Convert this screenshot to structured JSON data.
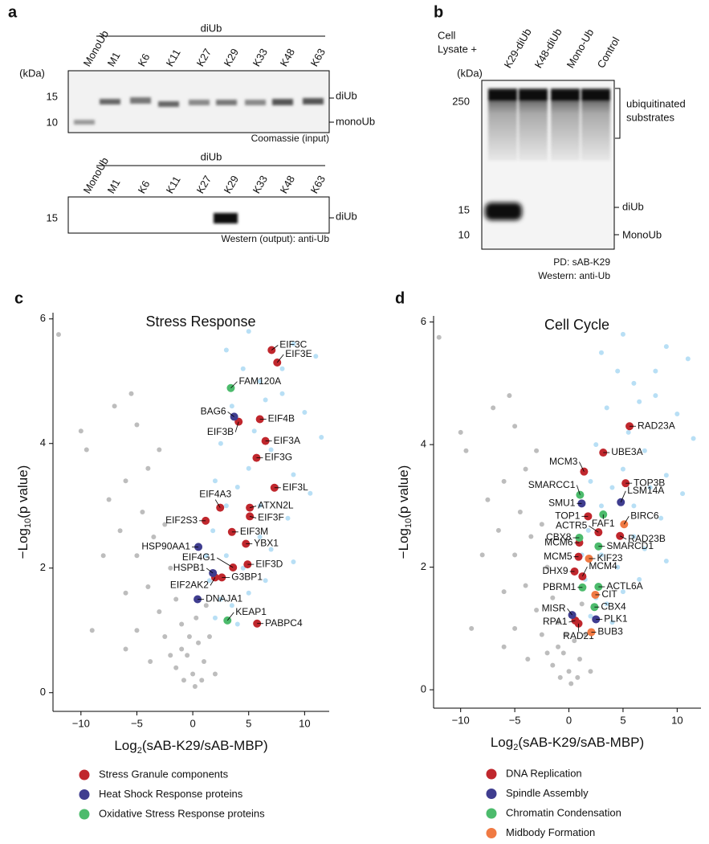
{
  "panel_a": {
    "label": "a",
    "group": "diUb",
    "lanes": [
      "MonoUb",
      "M1",
      "K6",
      "K11",
      "K27",
      "K29",
      "K33",
      "K48",
      "K63"
    ],
    "unit": "(kDa)",
    "markers": [
      "15",
      "10"
    ],
    "bands": [
      "diUb",
      "monoUb"
    ],
    "caption": "Coomassie (input)",
    "blot2": {
      "group": "diUb",
      "lanes": [
        "MonoUb",
        "M1",
        "K6",
        "K11",
        "K27",
        "K29",
        "K33",
        "K48",
        "K63"
      ],
      "markers": [
        "15"
      ],
      "bands": [
        "diUb"
      ],
      "caption": "Western (output): anti-Ub"
    }
  },
  "panel_b": {
    "label": "b",
    "treatment": [
      "Cell",
      "Lysate +"
    ],
    "lanes": [
      "K29-diUb",
      "K48-diUb",
      "Mono-Ub",
      "Control"
    ],
    "unit": "(kDa)",
    "markers": [
      "250",
      "15",
      "10"
    ],
    "bracket": [
      "ubiquitinated",
      "substrates"
    ],
    "bands": [
      "diUb",
      "MonoUb"
    ],
    "captions": [
      "PD: sAB-K29",
      "Western: anti-Ub"
    ]
  },
  "chart_data": [
    {
      "type": "scatter",
      "panel": "c",
      "title": "Stress Response",
      "x_label": [
        "Log",
        "2",
        "(sAB-K29/sAB-MBP)"
      ],
      "y_label": [
        "−Log",
        "10",
        "(p value)"
      ],
      "xlim": [
        -12.5,
        12.2
      ],
      "ylim": [
        -0.3,
        6.1
      ],
      "xticks": [
        {
          "value": -10,
          "label": "−10"
        },
        {
          "value": -5,
          "label": "−5"
        },
        0,
        5,
        10
      ],
      "yticks": [
        0,
        2,
        4,
        6
      ],
      "series": [
        {
          "color": "#bdbdbd",
          "x": [
            -12,
            -9.5,
            -10,
            -7,
            -5.5,
            -5,
            -6,
            -7.5,
            -4,
            -3,
            -6.5,
            -4.5,
            -8,
            -5,
            -3.5,
            -2.5,
            -6,
            -4,
            -2,
            -3,
            -1.5,
            -9,
            -5,
            -2.5,
            -1,
            -0.5,
            0,
            0.5,
            -1.5,
            1,
            0.3,
            -0.8,
            0.2,
            -0.3,
            2,
            -2,
            0.8,
            -1,
            1.2,
            -6,
            -3.8,
            1.5
          ],
          "y": [
            5.75,
            3.9,
            4.2,
            4.6,
            4.8,
            4.3,
            3.4,
            3.1,
            3.6,
            3.9,
            2.6,
            2.9,
            2.2,
            2.2,
            2.5,
            2.7,
            1.6,
            1.7,
            2,
            1.3,
            1.5,
            1,
            1,
            0.9,
            1.1,
            0.6,
            0.3,
            0.8,
            0.4,
            0.5,
            1.2,
            0.2,
            0.1,
            0.9,
            0.3,
            0.6,
            0.2,
            0.7,
            1.4,
            0.7,
            0.5,
            0.9
          ]
        },
        {
          "color": "#b8dff5",
          "x": [
            3,
            5,
            9,
            11,
            6,
            4.5,
            8,
            10,
            3.5,
            6.5,
            2.5,
            5,
            7,
            9,
            11.5,
            4,
            6,
            8.5,
            10.5,
            2,
            3,
            1.8,
            4.5,
            7,
            9,
            1.5,
            2.5,
            3.5,
            5,
            6.5,
            2,
            4,
            3,
            7.5,
            5.5,
            8,
            1.2,
            6
          ],
          "y": [
            5.5,
            5.8,
            5.6,
            5.4,
            5,
            5.2,
            4.8,
            4.5,
            4.6,
            4.7,
            4,
            3.6,
            3.9,
            3.5,
            4.1,
            3.3,
            3,
            2.8,
            3.2,
            3.4,
            2.2,
            2.6,
            2,
            2.3,
            2.1,
            1.8,
            1.5,
            1.4,
            1.6,
            1.8,
            1.2,
            1.1,
            3,
            3.3,
            4.2,
            5.2,
            2.2,
            2.5
          ]
        },
        {
          "name": "Stress Granule components",
          "color": "#c0272d",
          "labels": [
            "EIF3C",
            "EIF3E",
            "EIF3B",
            "EIF4B",
            "EIF3A",
            "EIF3G",
            "EIF3L",
            "EIF4A3",
            "ATXN2L",
            "EIF3F",
            "EIF2S3",
            "EIF3M",
            "YBX1",
            "EIF4G1",
            "EIF3D",
            "G3BP1",
            "EIF2AK2",
            "PABPC4"
          ],
          "x": [
            7.05,
            7.55,
            4.1,
            6,
            6.5,
            5.7,
            7.3,
            2.45,
            5.1,
            5.1,
            1.15,
            3.5,
            4.75,
            3.6,
            4.9,
            2.6,
            2,
            5.75
          ],
          "y": [
            5.5,
            5.3,
            4.35,
            4.39,
            4.04,
            3.77,
            3.29,
            2.97,
            2.97,
            2.83,
            2.76,
            2.58,
            2.39,
            2.01,
            2.06,
            1.85,
            1.85,
            1.11
          ]
        },
        {
          "name": "Heat Shock Response proteins",
          "color": "#3f3d8f",
          "labels": [
            "BAG6",
            "HSP90AA1",
            "HSPB1",
            "DNAJA1"
          ],
          "x": [
            3.7,
            0.5,
            1.8,
            0.43
          ],
          "y": [
            4.43,
            2.34,
            1.92,
            1.5
          ]
        },
        {
          "name": "Oxidative Stress Response proteins",
          "color": "#4cbb6c",
          "labels": [
            "FAM120A",
            "KEAP1"
          ],
          "x": [
            3.4,
            3.1
          ],
          "y": [
            4.89,
            1.16
          ]
        }
      ]
    },
    {
      "type": "scatter",
      "panel": "d",
      "title": "Cell Cycle",
      "x_label": [
        "Log",
        "2",
        "(sAB-K29/sAB-MBP)"
      ],
      "y_label": [
        "−Log",
        "10",
        "(p value)"
      ],
      "xlim": [
        -12.5,
        12.2
      ],
      "ylim": [
        -0.3,
        6.1
      ],
      "xticks": [
        {
          "value": -10,
          "label": "−10"
        },
        {
          "value": -5,
          "label": "−5"
        },
        0,
        5,
        10
      ],
      "yticks": [
        0,
        2,
        4,
        6
      ],
      "series": [
        {
          "color": "#bdbdbd",
          "x": [
            -12,
            -9.5,
            -10,
            -7,
            -5.5,
            -5,
            -6,
            -7.5,
            -4,
            -3,
            -6.5,
            -4.5,
            -8,
            -5,
            -3.5,
            -2.5,
            -6,
            -4,
            -2,
            -3,
            -1.5,
            -9,
            -5,
            -2.5,
            -1,
            -0.5,
            0,
            0.5,
            -1.5,
            1,
            0.3,
            -0.8,
            0.2,
            -0.3,
            2,
            -2,
            0.8,
            -1,
            1.2,
            -6,
            -3.8,
            1.5
          ],
          "y": [
            5.75,
            3.9,
            4.2,
            4.6,
            4.8,
            4.3,
            3.4,
            3.1,
            3.6,
            3.9,
            2.6,
            2.9,
            2.2,
            2.2,
            2.5,
            2.7,
            1.6,
            1.7,
            2,
            1.3,
            1.5,
            1,
            1,
            0.9,
            1.1,
            0.6,
            0.3,
            0.8,
            0.4,
            0.5,
            1.2,
            0.2,
            0.1,
            0.9,
            0.3,
            0.6,
            0.2,
            0.7,
            1.4,
            0.7,
            0.5,
            0.9
          ]
        },
        {
          "color": "#b8dff5",
          "x": [
            3,
            5,
            9,
            11,
            6,
            4.5,
            8,
            10,
            3.5,
            6.5,
            2.5,
            5,
            7,
            9,
            11.5,
            4,
            6,
            8.5,
            10.5,
            2,
            3,
            1.8,
            4.5,
            7,
            9,
            1.5,
            2.5,
            3.5,
            5,
            6.5,
            2,
            4,
            3,
            7.5,
            5.5,
            8,
            1.2,
            6
          ],
          "y": [
            5.5,
            5.8,
            5.6,
            5.4,
            5,
            5.2,
            4.8,
            4.5,
            4.6,
            4.7,
            4,
            3.6,
            3.9,
            3.5,
            4.1,
            3.3,
            3,
            2.8,
            3.2,
            3.4,
            2.2,
            2.6,
            2,
            2.3,
            2.1,
            1.8,
            1.5,
            1.4,
            1.6,
            1.8,
            1.2,
            1.1,
            3,
            3.3,
            4.2,
            5.2,
            2.2,
            2.5
          ]
        },
        {
          "name": "DNA Replication",
          "color": "#c0272d",
          "labels": [
            "RAD23A",
            "UBE3A",
            "MCM3",
            "TOP3B",
            "TOP1",
            "ACTR5",
            "MCM6",
            "RAD23B",
            "MCM5",
            "DHX9",
            "MCM4",
            "RPA1",
            "RAD21"
          ],
          "x": [
            5.6,
            3.17,
            1.4,
            5.24,
            1.77,
            2.73,
            0.96,
            4.72,
            0.89,
            0.52,
            1.25,
            0.59,
            0.89
          ],
          "y": [
            4.3,
            3.87,
            3.56,
            3.37,
            2.83,
            2.57,
            2.4,
            2.51,
            2.17,
            1.93,
            1.85,
            1.13,
            1.08
          ]
        },
        {
          "name": "Spindle Assembly",
          "color": "#3f3d8f",
          "labels": [
            "SMU1",
            "LSM14A",
            "MISR",
            "PLK1"
          ],
          "x": [
            1.18,
            4.8,
            0.3,
            2.5
          ],
          "y": [
            3.04,
            3.06,
            1.22,
            1.15
          ]
        },
        {
          "name": "Chromatin Condensation",
          "color": "#4cbb6c",
          "labels": [
            "SMARCC1",
            "FAF1",
            "CBX8",
            "SMARCD1",
            "PBRM1",
            "ACTL6A",
            "CBX4"
          ],
          "x": [
            1.03,
            3.17,
            0.96,
            2.73,
            1.25,
            2.73,
            2.36
          ],
          "y": [
            3.18,
            2.86,
            2.48,
            2.34,
            1.67,
            1.68,
            1.35
          ]
        },
        {
          "name": "Midbody Formation",
          "color": "#f07a43",
          "labels": [
            "BIRC6",
            "KIF23",
            "CIT",
            "BUB3"
          ],
          "x": [
            5.1,
            1.85,
            2.44,
            2.07
          ],
          "y": [
            2.7,
            2.14,
            1.55,
            0.94
          ]
        }
      ]
    }
  ]
}
